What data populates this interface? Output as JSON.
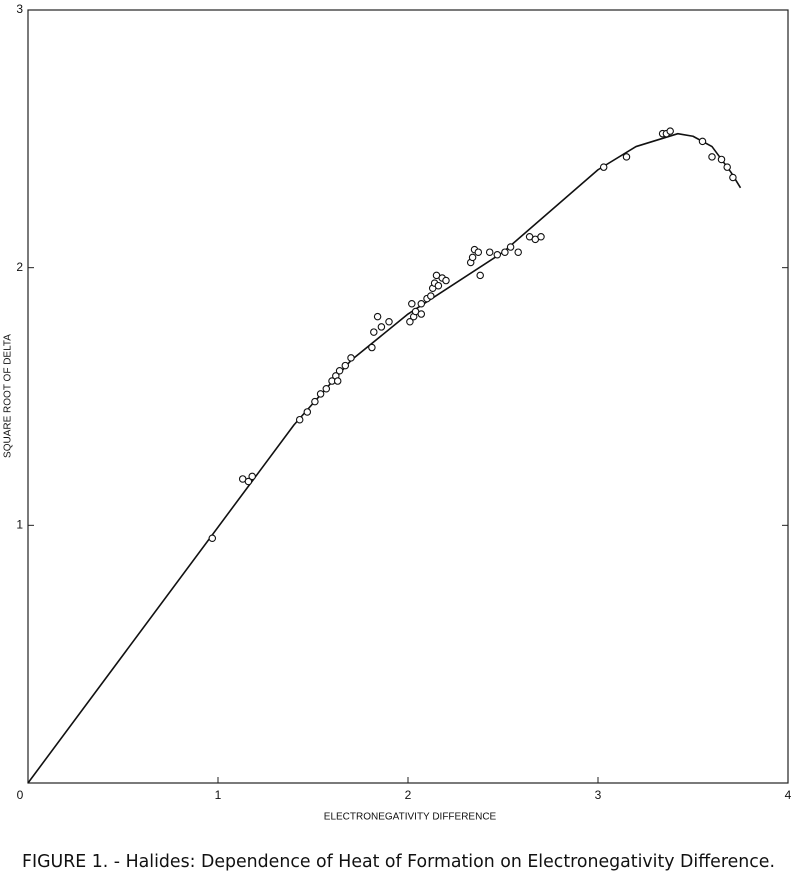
{
  "chart_data": {
    "type": "scatter",
    "title": "FIGURE 1. - Halides:  Dependence of Heat of Formation on Electronegativity Difference.",
    "xlabel": "ELECTRONEGATIVITY DIFFERENCE",
    "ylabel": "SQUARE ROOT OF DELTA",
    "xlim": [
      0,
      4
    ],
    "ylim": [
      0,
      3
    ],
    "xticks": [
      0,
      1,
      2,
      3,
      4
    ],
    "yticks": [
      1,
      2,
      3
    ],
    "color": "#111111",
    "points": {
      "x": [
        0.97,
        1.13,
        1.16,
        1.18,
        1.43,
        1.47,
        1.51,
        1.54,
        1.57,
        1.6,
        1.62,
        1.63,
        1.64,
        1.67,
        1.7,
        1.81,
        1.82,
        1.84,
        1.86,
        1.9,
        2.01,
        2.03,
        2.02,
        2.04,
        2.07,
        2.07,
        2.1,
        2.12,
        2.13,
        2.14,
        2.15,
        2.16,
        2.18,
        2.2,
        2.33,
        2.34,
        2.35,
        2.37,
        2.38,
        2.43,
        2.47,
        2.51,
        2.54,
        2.58,
        2.64,
        2.67,
        2.7,
        3.03,
        3.15,
        3.34,
        3.36,
        3.38,
        3.55,
        3.6,
        3.65,
        3.68,
        3.71
      ],
      "y": [
        0.95,
        1.18,
        1.17,
        1.19,
        1.41,
        1.44,
        1.48,
        1.51,
        1.53,
        1.56,
        1.58,
        1.56,
        1.6,
        1.62,
        1.65,
        1.69,
        1.75,
        1.81,
        1.77,
        1.79,
        1.79,
        1.81,
        1.86,
        1.83,
        1.82,
        1.86,
        1.88,
        1.89,
        1.92,
        1.94,
        1.97,
        1.93,
        1.96,
        1.95,
        2.02,
        2.04,
        2.07,
        2.06,
        1.97,
        2.06,
        2.05,
        2.06,
        2.08,
        2.06,
        2.12,
        2.11,
        2.12,
        2.39,
        2.43,
        2.52,
        2.52,
        2.53,
        2.49,
        2.43,
        2.42,
        2.39,
        2.35
      ]
    },
    "curve": {
      "x": [
        0,
        1.4,
        1.7,
        2.0,
        2.5,
        3.0,
        3.2,
        3.42,
        3.5,
        3.6,
        3.7,
        3.75
      ],
      "y": [
        0,
        1.39,
        1.64,
        1.82,
        2.06,
        2.38,
        2.47,
        2.52,
        2.51,
        2.47,
        2.37,
        2.31
      ]
    }
  }
}
